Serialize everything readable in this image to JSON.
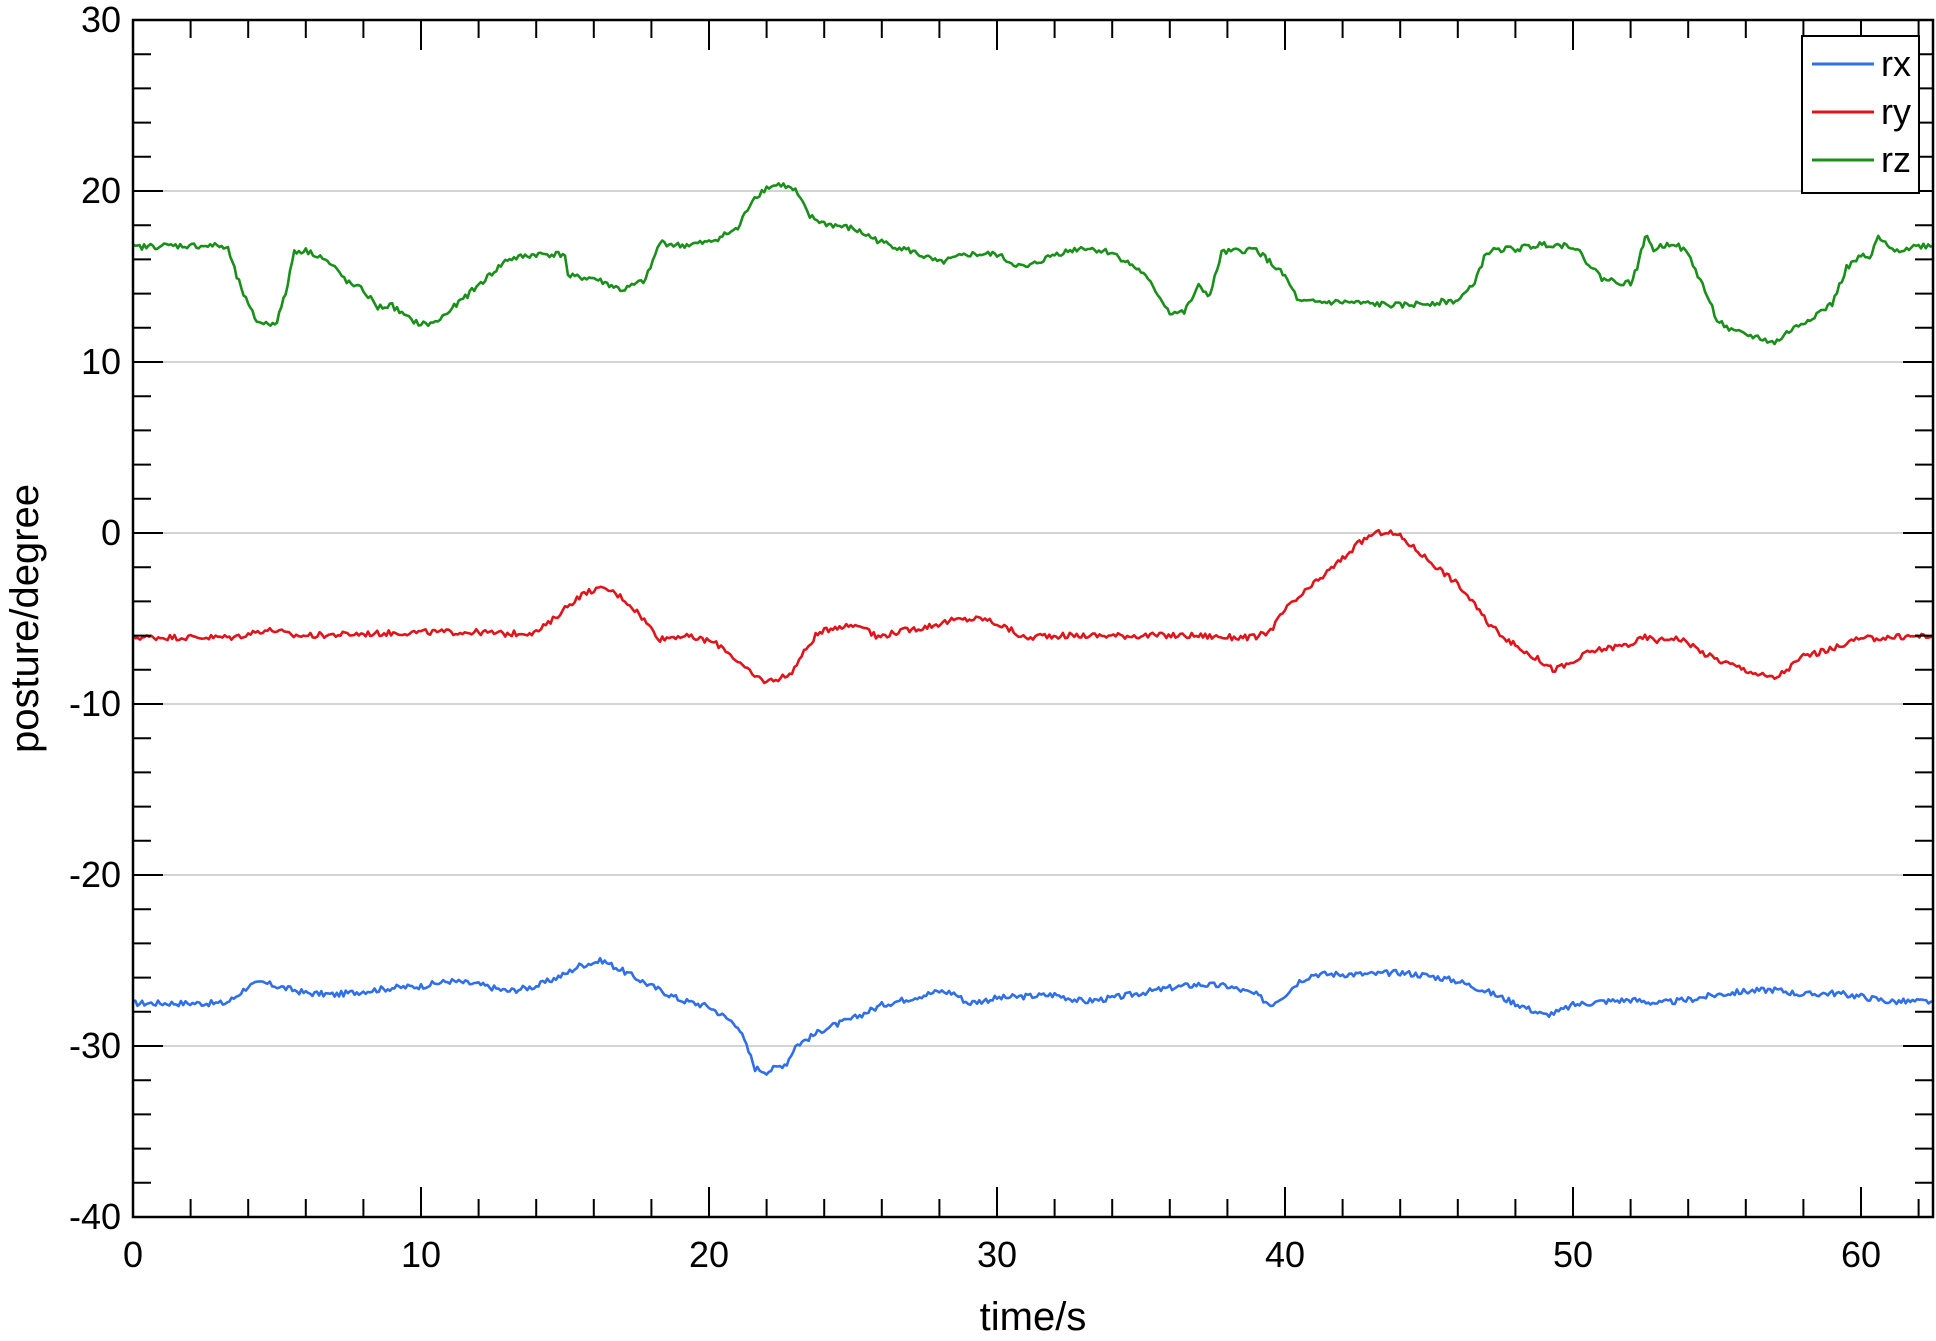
{
  "chart_data": {
    "type": "line",
    "xlabel": "time/s",
    "ylabel": "posture/degree",
    "xlim": [
      0,
      62.5
    ],
    "ylim": [
      -40,
      30
    ],
    "x_ticks": [
      0,
      10,
      20,
      30,
      40,
      50,
      60
    ],
    "x_tick_labels": [
      "0",
      "10",
      "20",
      "30",
      "40",
      "50",
      "60"
    ],
    "y_ticks": [
      -40,
      -30,
      -20,
      -10,
      0,
      10,
      20,
      30
    ],
    "y_tick_labels": [
      "-40",
      "-30",
      "-20",
      "-10",
      "0",
      "10",
      "20",
      "30"
    ],
    "grid": "horizontal",
    "legend_position": "top-right",
    "series": [
      {
        "name": "rx",
        "color": "#2f6fe8",
        "points": [
          [
            0,
            -27.5
          ],
          [
            1.5,
            -27.5
          ],
          [
            3.2,
            -27.5
          ],
          [
            3.5,
            -27.2
          ],
          [
            4,
            -26.5
          ],
          [
            4.5,
            -26.3
          ],
          [
            5,
            -26.5
          ],
          [
            6,
            -26.9
          ],
          [
            7,
            -27.0
          ],
          [
            8,
            -26.8
          ],
          [
            9,
            -26.6
          ],
          [
            10,
            -26.5
          ],
          [
            11,
            -26.2
          ],
          [
            12,
            -26.4
          ],
          [
            13,
            -26.8
          ],
          [
            14,
            -26.5
          ],
          [
            15,
            -25.8
          ],
          [
            15.5,
            -25.3
          ],
          [
            16.3,
            -25.0
          ],
          [
            17,
            -25.6
          ],
          [
            18,
            -26.5
          ],
          [
            19,
            -27.3
          ],
          [
            20,
            -27.7
          ],
          [
            21,
            -28.8
          ],
          [
            21.3,
            -30.0
          ],
          [
            21.6,
            -31.3
          ],
          [
            22,
            -31.5
          ],
          [
            22.7,
            -31.0
          ],
          [
            23,
            -30.0
          ],
          [
            24,
            -29.0
          ],
          [
            25,
            -28.4
          ],
          [
            26,
            -27.6
          ],
          [
            27,
            -27.2
          ],
          [
            28,
            -26.8
          ],
          [
            28.5,
            -26.9
          ],
          [
            29,
            -27.5
          ],
          [
            30,
            -27.2
          ],
          [
            31,
            -27.1
          ],
          [
            32,
            -27.0
          ],
          [
            33,
            -27.4
          ],
          [
            34,
            -27.2
          ],
          [
            35,
            -26.9
          ],
          [
            36,
            -26.6
          ],
          [
            37,
            -26.4
          ],
          [
            38,
            -26.5
          ],
          [
            39,
            -27.0
          ],
          [
            39.5,
            -27.6
          ],
          [
            40,
            -27.0
          ],
          [
            40.5,
            -26.2
          ],
          [
            41,
            -25.8
          ],
          [
            42,
            -25.8
          ],
          [
            43,
            -25.8
          ],
          [
            44,
            -25.7
          ],
          [
            45,
            -25.9
          ],
          [
            46,
            -26.2
          ],
          [
            47,
            -26.8
          ],
          [
            48,
            -27.5
          ],
          [
            49,
            -28.2
          ],
          [
            49.5,
            -28.0
          ],
          [
            50,
            -27.6
          ],
          [
            51,
            -27.4
          ],
          [
            52,
            -27.3
          ],
          [
            53,
            -27.5
          ],
          [
            54,
            -27.3
          ],
          [
            55,
            -27.0
          ],
          [
            56,
            -26.8
          ],
          [
            57,
            -26.7
          ],
          [
            58,
            -27.0
          ],
          [
            59,
            -26.9
          ],
          [
            60,
            -27.1
          ],
          [
            61,
            -27.4
          ],
          [
            62.5,
            -27.4
          ]
        ]
      },
      {
        "name": "ry",
        "color": "#e0141b",
        "points": [
          [
            0,
            -6.1
          ],
          [
            2,
            -6.1
          ],
          [
            3.5,
            -6.1
          ],
          [
            4,
            -5.9
          ],
          [
            4.5,
            -5.7
          ],
          [
            5,
            -5.7
          ],
          [
            5.5,
            -6.0
          ],
          [
            6,
            -6.0
          ],
          [
            8,
            -5.9
          ],
          [
            10,
            -5.8
          ],
          [
            12,
            -5.8
          ],
          [
            13,
            -5.9
          ],
          [
            14,
            -5.8
          ],
          [
            14.5,
            -5.2
          ],
          [
            15,
            -4.4
          ],
          [
            15.5,
            -3.7
          ],
          [
            16,
            -3.3
          ],
          [
            16.5,
            -3.3
          ],
          [
            17,
            -3.8
          ],
          [
            17.5,
            -4.6
          ],
          [
            18,
            -5.6
          ],
          [
            18.3,
            -6.2
          ],
          [
            19,
            -6.0
          ],
          [
            20,
            -6.3
          ],
          [
            20.5,
            -6.7
          ],
          [
            21,
            -7.5
          ],
          [
            21.5,
            -8.3
          ],
          [
            22,
            -8.7
          ],
          [
            22.8,
            -8.3
          ],
          [
            23.3,
            -7.0
          ],
          [
            23.7,
            -6.0
          ],
          [
            24.3,
            -5.5
          ],
          [
            25,
            -5.4
          ],
          [
            25.4,
            -5.4
          ],
          [
            25.8,
            -6.1
          ],
          [
            26.5,
            -5.8
          ],
          [
            27.5,
            -5.5
          ],
          [
            28.5,
            -5.1
          ],
          [
            29.5,
            -5.0
          ],
          [
            30,
            -5.3
          ],
          [
            30.5,
            -5.7
          ],
          [
            31,
            -6.2
          ],
          [
            31.5,
            -6.0
          ],
          [
            33,
            -6.0
          ],
          [
            35,
            -6.0
          ],
          [
            37,
            -6.0
          ],
          [
            38,
            -6.1
          ],
          [
            39,
            -6.1
          ],
          [
            39.5,
            -5.7
          ],
          [
            40,
            -4.5
          ],
          [
            41,
            -3.0
          ],
          [
            42,
            -1.5
          ],
          [
            42.5,
            -0.7
          ],
          [
            43,
            -0.1
          ],
          [
            43.5,
            0.1
          ],
          [
            44,
            -0.2
          ],
          [
            45,
            -1.6
          ],
          [
            46,
            -3.0
          ],
          [
            46.5,
            -4.0
          ],
          [
            47,
            -5.2
          ],
          [
            48,
            -6.6
          ],
          [
            49,
            -7.6
          ],
          [
            49.3,
            -8.0
          ],
          [
            50,
            -7.6
          ],
          [
            50.5,
            -7.0
          ],
          [
            51,
            -6.8
          ],
          [
            52,
            -6.5
          ],
          [
            52.5,
            -6.1
          ],
          [
            53,
            -6.3
          ],
          [
            53.5,
            -6.1
          ],
          [
            54,
            -6.4
          ],
          [
            54.5,
            -7.0
          ],
          [
            55,
            -7.4
          ],
          [
            56,
            -8.0
          ],
          [
            56.5,
            -8.3
          ],
          [
            57,
            -8.5
          ],
          [
            57.5,
            -7.9
          ],
          [
            58,
            -7.2
          ],
          [
            59,
            -6.8
          ],
          [
            59.5,
            -6.4
          ],
          [
            60,
            -6.2
          ],
          [
            61,
            -6.1
          ],
          [
            62.5,
            -6.0
          ]
        ]
      },
      {
        "name": "rz",
        "color": "#1a8f1a",
        "points": [
          [
            0,
            16.7
          ],
          [
            1,
            16.8
          ],
          [
            3,
            16.8
          ],
          [
            3.3,
            16.6
          ],
          [
            3.6,
            15.0
          ],
          [
            4,
            13.3
          ],
          [
            4.3,
            12.4
          ],
          [
            4.7,
            12.2
          ],
          [
            5,
            12.4
          ],
          [
            5.3,
            14.0
          ],
          [
            5.6,
            16.5
          ],
          [
            6,
            16.5
          ],
          [
            6.5,
            16.2
          ],
          [
            7,
            15.5
          ],
          [
            7.5,
            14.6
          ],
          [
            8,
            14.2
          ],
          [
            8.5,
            13.2
          ],
          [
            9,
            13.3
          ],
          [
            9.5,
            12.6
          ],
          [
            10,
            12.2
          ],
          [
            10.5,
            12.3
          ],
          [
            11,
            13.0
          ],
          [
            12,
            14.5
          ],
          [
            13,
            16.0
          ],
          [
            14,
            16.3
          ],
          [
            15,
            16.3
          ],
          [
            15.1,
            15.0
          ],
          [
            16,
            14.9
          ],
          [
            17,
            14.2
          ],
          [
            17.8,
            14.8
          ],
          [
            18.3,
            17.0
          ],
          [
            19,
            16.8
          ],
          [
            20,
            17.0
          ],
          [
            21,
            17.8
          ],
          [
            21.5,
            19.5
          ],
          [
            22,
            20.2
          ],
          [
            22.5,
            20.4
          ],
          [
            23,
            20.0
          ],
          [
            23.5,
            18.5
          ],
          [
            24,
            18.1
          ],
          [
            25,
            17.8
          ],
          [
            26,
            17.0
          ],
          [
            27,
            16.5
          ],
          [
            28,
            15.8
          ],
          [
            29,
            16.3
          ],
          [
            30,
            16.3
          ],
          [
            30.5,
            15.8
          ],
          [
            31,
            15.5
          ],
          [
            32,
            16.3
          ],
          [
            33,
            16.7
          ],
          [
            34,
            16.4
          ],
          [
            35,
            15.3
          ],
          [
            35.5,
            14.2
          ],
          [
            36,
            12.9
          ],
          [
            36.5,
            12.9
          ],
          [
            37,
            14.4
          ],
          [
            37.4,
            13.9
          ],
          [
            37.8,
            16.4
          ],
          [
            39,
            16.6
          ],
          [
            40,
            15.0
          ],
          [
            40.5,
            13.5
          ],
          [
            42,
            13.5
          ],
          [
            44,
            13.3
          ],
          [
            46,
            13.6
          ],
          [
            46.5,
            14.4
          ],
          [
            47,
            16.4
          ],
          [
            47.5,
            16.6
          ],
          [
            48,
            16.6
          ],
          [
            49,
            16.9
          ],
          [
            50,
            16.8
          ],
          [
            51,
            14.9
          ],
          [
            51.5,
            14.7
          ],
          [
            52,
            14.6
          ],
          [
            52.3,
            15.9
          ],
          [
            52.5,
            17.4
          ],
          [
            52.8,
            16.6
          ],
          [
            53.5,
            17.0
          ],
          [
            54,
            16.3
          ],
          [
            54.5,
            14.5
          ],
          [
            55,
            12.5
          ],
          [
            55.5,
            11.8
          ],
          [
            56,
            11.6
          ],
          [
            56.5,
            11.4
          ],
          [
            57,
            11.1
          ],
          [
            57.5,
            11.8
          ],
          [
            58,
            12.3
          ],
          [
            59,
            13.4
          ],
          [
            59.5,
            15.5
          ],
          [
            60,
            16.2
          ],
          [
            60.3,
            16.0
          ],
          [
            60.6,
            17.3
          ],
          [
            61,
            16.6
          ],
          [
            61.5,
            16.6
          ],
          [
            62,
            16.8
          ],
          [
            62.5,
            16.8
          ]
        ]
      }
    ]
  }
}
